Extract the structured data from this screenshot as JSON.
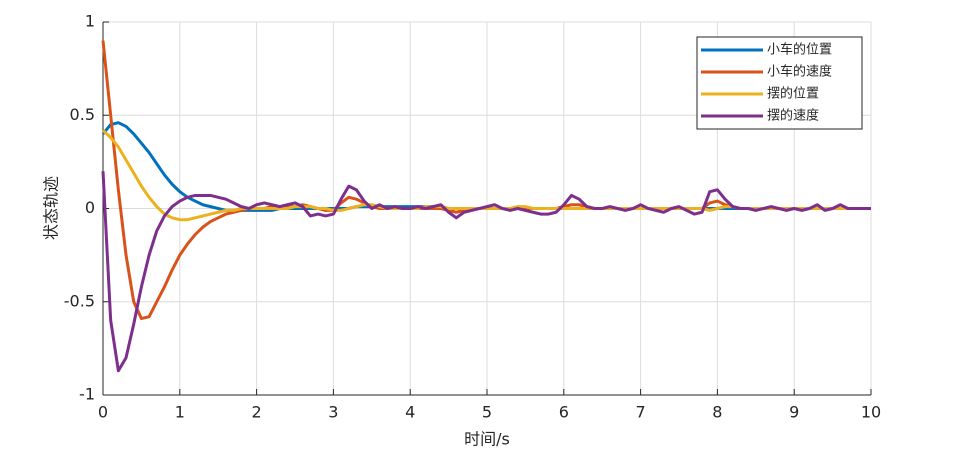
{
  "chart_data": {
    "type": "line",
    "xlabel": "时间/s",
    "ylabel": "状态轨迹",
    "x": [
      0,
      0.1,
      0.2,
      0.3,
      0.4,
      0.5,
      0.6,
      0.7,
      0.8,
      0.9,
      1,
      1.1,
      1.2,
      1.3,
      1.4,
      1.5,
      1.6,
      1.7,
      1.8,
      1.9,
      2,
      2.1,
      2.2,
      2.3,
      2.4,
      2.5,
      2.6,
      2.7,
      2.8,
      2.9,
      3,
      3.1,
      3.2,
      3.3,
      3.4,
      3.5,
      3.6,
      3.7,
      3.8,
      3.9,
      4,
      4.1,
      4.2,
      4.3,
      4.4,
      4.5,
      4.6,
      4.7,
      4.8,
      4.9,
      5,
      5.1,
      5.2,
      5.3,
      5.4,
      5.5,
      5.6,
      5.7,
      5.8,
      5.9,
      6,
      6.1,
      6.2,
      6.3,
      6.4,
      6.5,
      6.6,
      6.7,
      6.8,
      6.9,
      7,
      7.1,
      7.2,
      7.3,
      7.4,
      7.5,
      7.6,
      7.7,
      7.8,
      7.9,
      8,
      8.1,
      8.2,
      8.3,
      8.4,
      8.5,
      8.6,
      8.7,
      8.8,
      8.9,
      9,
      9.1,
      9.2,
      9.3,
      9.4,
      9.5,
      9.6,
      9.7,
      9.8,
      9.9,
      10
    ],
    "series": [
      {
        "name": "小车的位置",
        "color": "#0072bd",
        "values": [
          0.4,
          0.45,
          0.46,
          0.44,
          0.4,
          0.35,
          0.3,
          0.24,
          0.18,
          0.13,
          0.09,
          0.06,
          0.04,
          0.02,
          0.01,
          0,
          -0.01,
          -0.01,
          -0.01,
          -0.01,
          -0.01,
          -0.01,
          -0.01,
          0,
          0,
          0,
          0,
          0,
          0,
          0,
          0,
          0,
          0,
          0.01,
          0.01,
          0.01,
          0.01,
          0.01,
          0.01,
          0.01,
          0.01,
          0.01,
          0.01,
          0.01,
          0.01,
          0,
          0,
          0,
          0,
          0,
          0,
          0,
          0,
          0,
          0,
          0,
          0,
          0,
          0,
          0,
          0,
          0,
          0,
          0,
          0,
          0,
          0,
          0,
          0,
          0,
          0,
          0,
          0,
          0,
          0,
          0,
          0,
          0,
          0,
          0,
          0,
          0,
          0,
          0,
          0,
          0,
          0,
          0,
          0,
          0,
          0,
          0,
          0,
          0,
          0,
          0,
          0,
          0,
          0,
          0,
          0
        ]
      },
      {
        "name": "小车的速度",
        "color": "#d95319",
        "values": [
          0.9,
          0.5,
          0.1,
          -0.25,
          -0.5,
          -0.59,
          -0.58,
          -0.5,
          -0.42,
          -0.33,
          -0.25,
          -0.19,
          -0.14,
          -0.1,
          -0.07,
          -0.05,
          -0.03,
          -0.02,
          -0.01,
          0,
          0,
          0,
          0.01,
          0.01,
          0.01,
          0.01,
          0.02,
          0.01,
          0,
          -0.01,
          -0.01,
          0.03,
          0.06,
          0.05,
          0.03,
          0.01,
          0,
          0,
          0,
          0,
          0,
          0,
          0,
          0,
          0,
          -0.01,
          -0.02,
          -0.01,
          0,
          0,
          0,
          0,
          0,
          0,
          0,
          0,
          0,
          0,
          0,
          0,
          0.01,
          0.02,
          0.02,
          0.01,
          0,
          0,
          0,
          0,
          0,
          0,
          0,
          0,
          0,
          0,
          0,
          0,
          0,
          0,
          0,
          0.03,
          0.04,
          0.02,
          0.01,
          0,
          0,
          0,
          0,
          0,
          0,
          0,
          0,
          0,
          0,
          0,
          0,
          0,
          0,
          0,
          0,
          0,
          0
        ]
      },
      {
        "name": "摆的位置",
        "color": "#edb120",
        "values": [
          0.42,
          0.38,
          0.33,
          0.26,
          0.19,
          0.12,
          0.06,
          0.01,
          -0.03,
          -0.05,
          -0.06,
          -0.06,
          -0.05,
          -0.04,
          -0.03,
          -0.02,
          -0.01,
          -0.01,
          0,
          0,
          0,
          0,
          0,
          0,
          0,
          0.01,
          0.01,
          0.01,
          0,
          0,
          -0.01,
          -0.01,
          0,
          0.01,
          0.02,
          0.02,
          0.01,
          0,
          0,
          0,
          0,
          0,
          0.01,
          0.01,
          0.01,
          0,
          0,
          0,
          0,
          0,
          0,
          0,
          0,
          0,
          0.01,
          0.01,
          0,
          0,
          0,
          0,
          0,
          0,
          0,
          0,
          0,
          0,
          0,
          0,
          0,
          0,
          0,
          0,
          0,
          0,
          0,
          0,
          0,
          0,
          0,
          -0.01,
          0,
          0.01,
          0.01,
          0,
          0,
          0,
          0,
          0,
          0,
          0,
          0,
          0,
          0,
          0,
          0,
          0,
          0,
          0,
          0,
          0,
          0
        ]
      },
      {
        "name": "摆的速度",
        "color": "#7e2f8e",
        "values": [
          0.2,
          -0.6,
          -0.87,
          -0.8,
          -0.62,
          -0.42,
          -0.25,
          -0.12,
          -0.04,
          0.01,
          0.04,
          0.06,
          0.07,
          0.07,
          0.07,
          0.06,
          0.05,
          0.03,
          0.01,
          0,
          0.02,
          0.03,
          0.02,
          0.01,
          0.02,
          0.03,
          0.01,
          -0.04,
          -0.03,
          -0.04,
          -0.03,
          0.05,
          0.12,
          0.1,
          0.04,
          0,
          0.02,
          0,
          0.01,
          0,
          0,
          0.01,
          0,
          0.01,
          0.02,
          -0.02,
          -0.05,
          -0.02,
          -0.01,
          0,
          0.01,
          0.02,
          0,
          -0.01,
          0,
          -0.01,
          -0.02,
          -0.03,
          -0.03,
          -0.02,
          0.02,
          0.07,
          0.05,
          0.01,
          0,
          0,
          0.01,
          0,
          -0.01,
          0,
          0.02,
          0,
          -0.01,
          -0.02,
          0,
          0.01,
          -0.01,
          -0.03,
          -0.02,
          0.09,
          0.1,
          0.05,
          0.01,
          0,
          0,
          -0.01,
          0,
          0.01,
          0,
          -0.01,
          0,
          -0.01,
          0,
          0.02,
          -0.01,
          0,
          0.02,
          0,
          0,
          0,
          0
        ]
      }
    ],
    "xlim": [
      0,
      10
    ],
    "ylim": [
      -1,
      1
    ],
    "xticks": [
      0,
      1,
      2,
      3,
      4,
      5,
      6,
      7,
      8,
      9,
      10
    ],
    "yticks": [
      -1,
      -0.5,
      0,
      0.5,
      1
    ],
    "grid": true,
    "legend": "northeast"
  }
}
